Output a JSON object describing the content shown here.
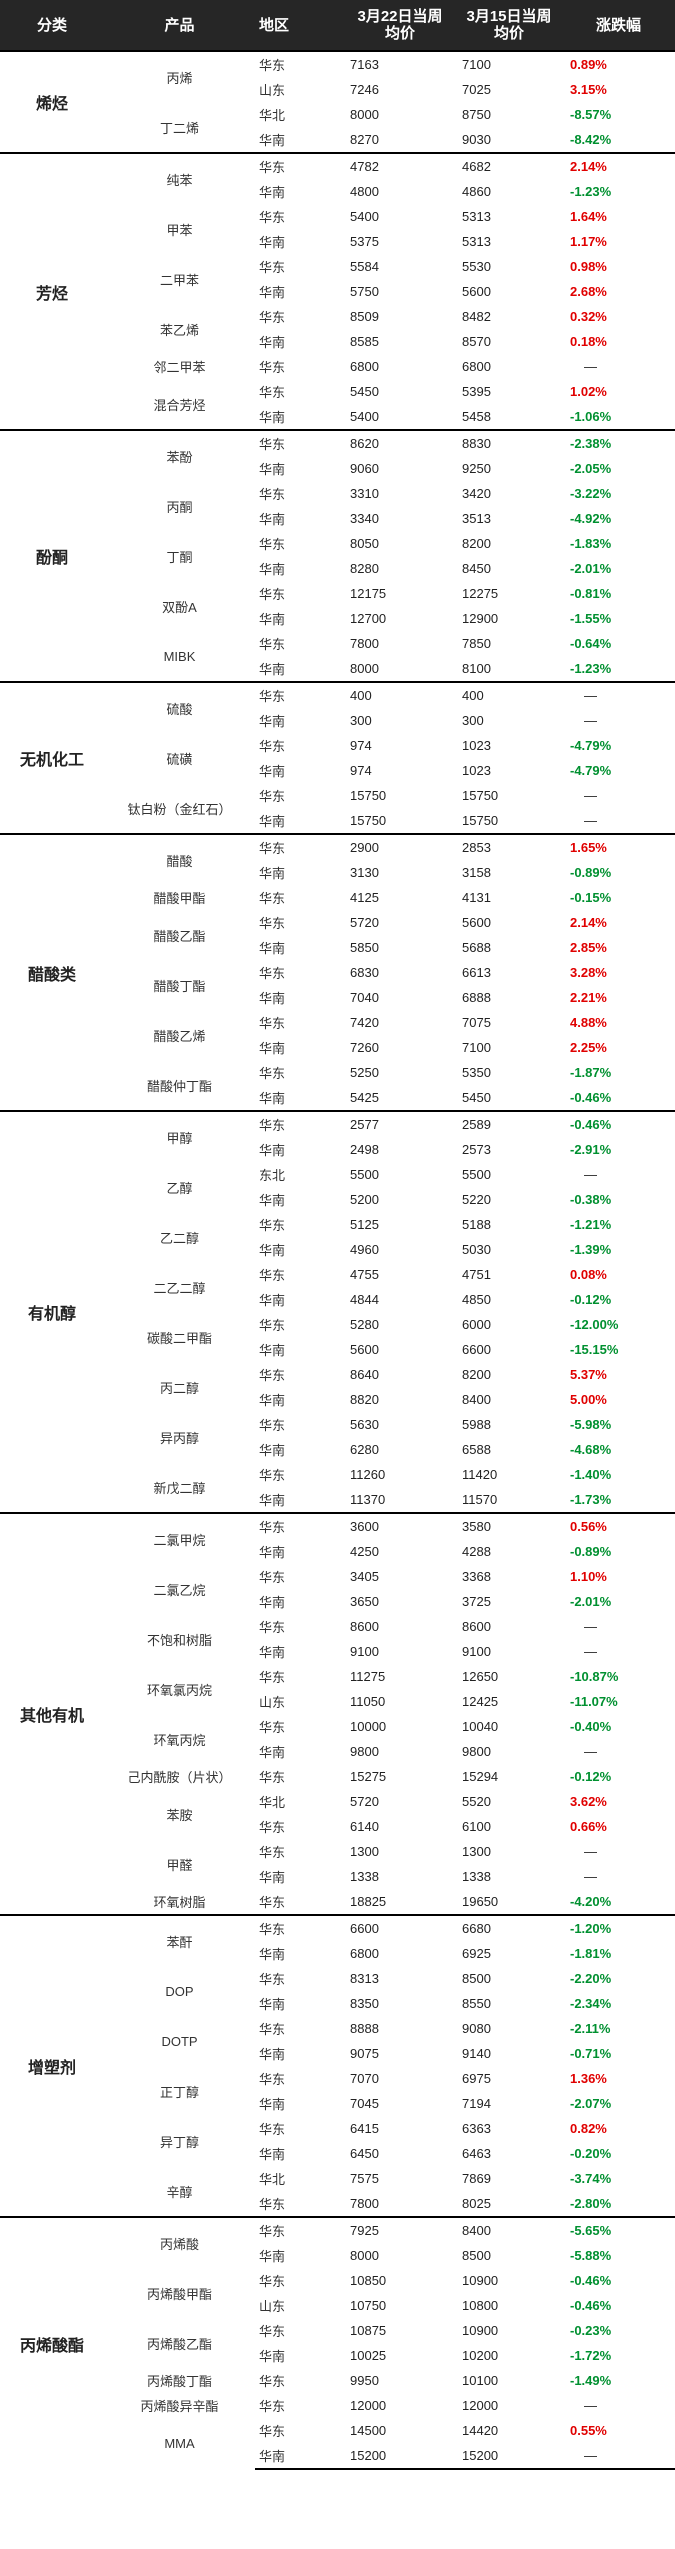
{
  "header": {
    "category": "分类",
    "product": "产品",
    "region": "地区",
    "week1": "3月22日当周均价",
    "week2": "3月15日当周均价",
    "change": "涨跌幅"
  },
  "colors": {
    "up": "#e00000",
    "down": "#009030",
    "header_bg": "#262626"
  },
  "groups": [
    {
      "category": "烯烃",
      "products": [
        {
          "name": "丙烯",
          "rows": [
            {
              "region": "华东",
              "w1": "7163",
              "w2": "7100",
              "chg": "0.89%"
            },
            {
              "region": "山东",
              "w1": "7246",
              "w2": "7025",
              "chg": "3.15%"
            }
          ]
        },
        {
          "name": "丁二烯",
          "rows": [
            {
              "region": "华北",
              "w1": "8000",
              "w2": "8750",
              "chg": "-8.57%"
            },
            {
              "region": "华南",
              "w1": "8270",
              "w2": "9030",
              "chg": "-8.42%"
            }
          ]
        }
      ]
    },
    {
      "category": "芳烃",
      "products": [
        {
          "name": "纯苯",
          "rows": [
            {
              "region": "华东",
              "w1": "4782",
              "w2": "4682",
              "chg": "2.14%"
            },
            {
              "region": "华南",
              "w1": "4800",
              "w2": "4860",
              "chg": "-1.23%"
            }
          ]
        },
        {
          "name": "甲苯",
          "rows": [
            {
              "region": "华东",
              "w1": "5400",
              "w2": "5313",
              "chg": "1.64%"
            },
            {
              "region": "华南",
              "w1": "5375",
              "w2": "5313",
              "chg": "1.17%"
            }
          ]
        },
        {
          "name": "二甲苯",
          "rows": [
            {
              "region": "华东",
              "w1": "5584",
              "w2": "5530",
              "chg": "0.98%"
            },
            {
              "region": "华南",
              "w1": "5750",
              "w2": "5600",
              "chg": "2.68%"
            }
          ]
        },
        {
          "name": "苯乙烯",
          "rows": [
            {
              "region": "华东",
              "w1": "8509",
              "w2": "8482",
              "chg": "0.32%"
            },
            {
              "region": "华南",
              "w1": "8585",
              "w2": "8570",
              "chg": "0.18%"
            }
          ]
        },
        {
          "name": "邻二甲苯",
          "rows": [
            {
              "region": "华东",
              "w1": "6800",
              "w2": "6800",
              "chg": "—"
            }
          ]
        },
        {
          "name": "混合芳烃",
          "rows": [
            {
              "region": "华东",
              "w1": "5450",
              "w2": "5395",
              "chg": "1.02%"
            },
            {
              "region": "华南",
              "w1": "5400",
              "w2": "5458",
              "chg": "-1.06%"
            }
          ]
        }
      ]
    },
    {
      "category": "酚酮",
      "products": [
        {
          "name": "苯酚",
          "rows": [
            {
              "region": "华东",
              "w1": "8620",
              "w2": "8830",
              "chg": "-2.38%"
            },
            {
              "region": "华南",
              "w1": "9060",
              "w2": "9250",
              "chg": "-2.05%"
            }
          ]
        },
        {
          "name": "丙酮",
          "rows": [
            {
              "region": "华东",
              "w1": "3310",
              "w2": "3420",
              "chg": "-3.22%"
            },
            {
              "region": "华南",
              "w1": "3340",
              "w2": "3513",
              "chg": "-4.92%"
            }
          ]
        },
        {
          "name": "丁酮",
          "rows": [
            {
              "region": "华东",
              "w1": "8050",
              "w2": "8200",
              "chg": "-1.83%"
            },
            {
              "region": "华南",
              "w1": "8280",
              "w2": "8450",
              "chg": "-2.01%"
            }
          ]
        },
        {
          "name": "双酚A",
          "rows": [
            {
              "region": "华东",
              "w1": "12175",
              "w2": "12275",
              "chg": "-0.81%"
            },
            {
              "region": "华南",
              "w1": "12700",
              "w2": "12900",
              "chg": "-1.55%"
            }
          ]
        },
        {
          "name": "MIBK",
          "rows": [
            {
              "region": "华东",
              "w1": "7800",
              "w2": "7850",
              "chg": "-0.64%"
            },
            {
              "region": "华南",
              "w1": "8000",
              "w2": "8100",
              "chg": "-1.23%"
            }
          ]
        }
      ]
    },
    {
      "category": "无机化工",
      "products": [
        {
          "name": "硫酸",
          "rows": [
            {
              "region": "华东",
              "w1": "400",
              "w2": "400",
              "chg": "—"
            },
            {
              "region": "华南",
              "w1": "300",
              "w2": "300",
              "chg": "—"
            }
          ]
        },
        {
          "name": "硫磺",
          "rows": [
            {
              "region": "华东",
              "w1": "974",
              "w2": "1023",
              "chg": "-4.79%"
            },
            {
              "region": "华南",
              "w1": "974",
              "w2": "1023",
              "chg": "-4.79%"
            }
          ]
        },
        {
          "name": "钛白粉（金红石）",
          "rows": [
            {
              "region": "华东",
              "w1": "15750",
              "w2": "15750",
              "chg": "—"
            },
            {
              "region": "华南",
              "w1": "15750",
              "w2": "15750",
              "chg": "—"
            }
          ]
        }
      ]
    },
    {
      "category": "醋酸类",
      "products": [
        {
          "name": "醋酸",
          "rows": [
            {
              "region": "华东",
              "w1": "2900",
              "w2": "2853",
              "chg": "1.65%"
            },
            {
              "region": "华南",
              "w1": "3130",
              "w2": "3158",
              "chg": "-0.89%"
            }
          ]
        },
        {
          "name": "醋酸甲酯",
          "rows": [
            {
              "region": "华东",
              "w1": "4125",
              "w2": "4131",
              "chg": "-0.15%"
            }
          ]
        },
        {
          "name": "醋酸乙酯",
          "rows": [
            {
              "region": "华东",
              "w1": "5720",
              "w2": "5600",
              "chg": "2.14%"
            },
            {
              "region": "华南",
              "w1": "5850",
              "w2": "5688",
              "chg": "2.85%"
            }
          ]
        },
        {
          "name": "醋酸丁酯",
          "rows": [
            {
              "region": "华东",
              "w1": "6830",
              "w2": "6613",
              "chg": "3.28%"
            },
            {
              "region": "华南",
              "w1": "7040",
              "w2": "6888",
              "chg": "2.21%"
            }
          ]
        },
        {
          "name": "醋酸乙烯",
          "rows": [
            {
              "region": "华东",
              "w1": "7420",
              "w2": "7075",
              "chg": "4.88%"
            },
            {
              "region": "华南",
              "w1": "7260",
              "w2": "7100",
              "chg": "2.25%"
            }
          ]
        },
        {
          "name": "醋酸仲丁酯",
          "rows": [
            {
              "region": "华东",
              "w1": "5250",
              "w2": "5350",
              "chg": "-1.87%"
            },
            {
              "region": "华南",
              "w1": "5425",
              "w2": "5450",
              "chg": "-0.46%"
            }
          ]
        }
      ]
    },
    {
      "category": "有机醇",
      "products": [
        {
          "name": "甲醇",
          "rows": [
            {
              "region": "华东",
              "w1": "2577",
              "w2": "2589",
              "chg": "-0.46%"
            },
            {
              "region": "华南",
              "w1": "2498",
              "w2": "2573",
              "chg": "-2.91%"
            }
          ]
        },
        {
          "name": "乙醇",
          "rows": [
            {
              "region": "东北",
              "w1": "5500",
              "w2": "5500",
              "chg": "—"
            },
            {
              "region": "华南",
              "w1": "5200",
              "w2": "5220",
              "chg": "-0.38%"
            }
          ]
        },
        {
          "name": "乙二醇",
          "rows": [
            {
              "region": "华东",
              "w1": "5125",
              "w2": "5188",
              "chg": "-1.21%"
            },
            {
              "region": "华南",
              "w1": "4960",
              "w2": "5030",
              "chg": "-1.39%"
            }
          ]
        },
        {
          "name": "二乙二醇",
          "rows": [
            {
              "region": "华东",
              "w1": "4755",
              "w2": "4751",
              "chg": "0.08%"
            },
            {
              "region": "华南",
              "w1": "4844",
              "w2": "4850",
              "chg": "-0.12%"
            }
          ]
        },
        {
          "name": "碳酸二甲酯",
          "rows": [
            {
              "region": "华东",
              "w1": "5280",
              "w2": "6000",
              "chg": "-12.00%"
            },
            {
              "region": "华南",
              "w1": "5600",
              "w2": "6600",
              "chg": "-15.15%"
            }
          ]
        },
        {
          "name": "丙二醇",
          "rows": [
            {
              "region": "华东",
              "w1": "8640",
              "w2": "8200",
              "chg": "5.37%"
            },
            {
              "region": "华南",
              "w1": "8820",
              "w2": "8400",
              "chg": "5.00%"
            }
          ]
        },
        {
          "name": "异丙醇",
          "rows": [
            {
              "region": "华东",
              "w1": "5630",
              "w2": "5988",
              "chg": "-5.98%"
            },
            {
              "region": "华南",
              "w1": "6280",
              "w2": "6588",
              "chg": "-4.68%"
            }
          ]
        },
        {
          "name": "新戊二醇",
          "rows": [
            {
              "region": "华东",
              "w1": "11260",
              "w2": "11420",
              "chg": "-1.40%"
            },
            {
              "region": "华南",
              "w1": "11370",
              "w2": "11570",
              "chg": "-1.73%"
            }
          ]
        }
      ]
    },
    {
      "category": "其他有机",
      "products": [
        {
          "name": "二氯甲烷",
          "rows": [
            {
              "region": "华东",
              "w1": "3600",
              "w2": "3580",
              "chg": "0.56%"
            },
            {
              "region": "华南",
              "w1": "4250",
              "w2": "4288",
              "chg": "-0.89%"
            }
          ]
        },
        {
          "name": "二氯乙烷",
          "rows": [
            {
              "region": "华东",
              "w1": "3405",
              "w2": "3368",
              "chg": "1.10%"
            },
            {
              "region": "华南",
              "w1": "3650",
              "w2": "3725",
              "chg": "-2.01%"
            }
          ]
        },
        {
          "name": "不饱和树脂",
          "rows": [
            {
              "region": "华东",
              "w1": "8600",
              "w2": "8600",
              "chg": "—"
            },
            {
              "region": "华南",
              "w1": "9100",
              "w2": "9100",
              "chg": "—"
            }
          ]
        },
        {
          "name": "环氧氯丙烷",
          "rows": [
            {
              "region": "华东",
              "w1": "11275",
              "w2": "12650",
              "chg": "-10.87%"
            },
            {
              "region": "山东",
              "w1": "11050",
              "w2": "12425",
              "chg": "-11.07%"
            }
          ]
        },
        {
          "name": "环氧丙烷",
          "rows": [
            {
              "region": "华东",
              "w1": "10000",
              "w2": "10040",
              "chg": "-0.40%"
            },
            {
              "region": "华南",
              "w1": "9800",
              "w2": "9800",
              "chg": "—"
            }
          ]
        },
        {
          "name": "己内酰胺（片状）",
          "rows": [
            {
              "region": "华东",
              "w1": "15275",
              "w2": "15294",
              "chg": "-0.12%"
            }
          ]
        },
        {
          "name": "苯胺",
          "rows": [
            {
              "region": "华北",
              "w1": "5720",
              "w2": "5520",
              "chg": "3.62%"
            },
            {
              "region": "华东",
              "w1": "6140",
              "w2": "6100",
              "chg": "0.66%"
            }
          ]
        },
        {
          "name": "甲醛",
          "rows": [
            {
              "region": "华东",
              "w1": "1300",
              "w2": "1300",
              "chg": "—"
            },
            {
              "region": "华南",
              "w1": "1338",
              "w2": "1338",
              "chg": "—"
            }
          ]
        },
        {
          "name": "环氧树脂",
          "rows": [
            {
              "region": "华东",
              "w1": "18825",
              "w2": "19650",
              "chg": "-4.20%"
            }
          ]
        }
      ]
    },
    {
      "category": "增塑剂",
      "products": [
        {
          "name": "苯酐",
          "rows": [
            {
              "region": "华东",
              "w1": "6600",
              "w2": "6680",
              "chg": "-1.20%"
            },
            {
              "region": "华南",
              "w1": "6800",
              "w2": "6925",
              "chg": "-1.81%"
            }
          ]
        },
        {
          "name": "DOP",
          "rows": [
            {
              "region": "华东",
              "w1": "8313",
              "w2": "8500",
              "chg": "-2.20%"
            },
            {
              "region": "华南",
              "w1": "8350",
              "w2": "8550",
              "chg": "-2.34%"
            }
          ]
        },
        {
          "name": "DOTP",
          "rows": [
            {
              "region": "华东",
              "w1": "8888",
              "w2": "9080",
              "chg": "-2.11%"
            },
            {
              "region": "华南",
              "w1": "9075",
              "w2": "9140",
              "chg": "-0.71%"
            }
          ]
        },
        {
          "name": "正丁醇",
          "rows": [
            {
              "region": "华东",
              "w1": "7070",
              "w2": "6975",
              "chg": "1.36%"
            },
            {
              "region": "华南",
              "w1": "7045",
              "w2": "7194",
              "chg": "-2.07%"
            }
          ]
        },
        {
          "name": "异丁醇",
          "rows": [
            {
              "region": "华东",
              "w1": "6415",
              "w2": "6363",
              "chg": "0.82%"
            },
            {
              "region": "华南",
              "w1": "6450",
              "w2": "6463",
              "chg": "-0.20%"
            }
          ]
        },
        {
          "name": "辛醇",
          "rows": [
            {
              "region": "华北",
              "w1": "7575",
              "w2": "7869",
              "chg": "-3.74%"
            },
            {
              "region": "华东",
              "w1": "7800",
              "w2": "8025",
              "chg": "-2.80%"
            }
          ]
        }
      ]
    },
    {
      "category": "丙烯酸酯",
      "products": [
        {
          "name": "丙烯酸",
          "rows": [
            {
              "region": "华东",
              "w1": "7925",
              "w2": "8400",
              "chg": "-5.65%"
            },
            {
              "region": "华南",
              "w1": "8000",
              "w2": "8500",
              "chg": "-5.88%"
            }
          ]
        },
        {
          "name": "丙烯酸甲酯",
          "rows": [
            {
              "region": "华东",
              "w1": "10850",
              "w2": "10900",
              "chg": "-0.46%"
            },
            {
              "region": "山东",
              "w1": "10750",
              "w2": "10800",
              "chg": "-0.46%"
            }
          ]
        },
        {
          "name": "丙烯酸乙酯",
          "rows": [
            {
              "region": "华东",
              "w1": "10875",
              "w2": "10900",
              "chg": "-0.23%"
            },
            {
              "region": "华南",
              "w1": "10025",
              "w2": "10200",
              "chg": "-1.72%"
            }
          ]
        },
        {
          "name": "丙烯酸丁酯",
          "rows": [
            {
              "region": "华东",
              "w1": "9950",
              "w2": "10100",
              "chg": "-1.49%"
            }
          ]
        },
        {
          "name": "丙烯酸异辛酯",
          "rows": [
            {
              "region": "华东",
              "w1": "12000",
              "w2": "12000",
              "chg": "—"
            }
          ]
        },
        {
          "name": "MMA",
          "rows": [
            {
              "region": "华东",
              "w1": "14500",
              "w2": "14420",
              "chg": "0.55%"
            },
            {
              "region": "华南",
              "w1": "15200",
              "w2": "15200",
              "chg": "—"
            }
          ]
        }
      ]
    }
  ]
}
